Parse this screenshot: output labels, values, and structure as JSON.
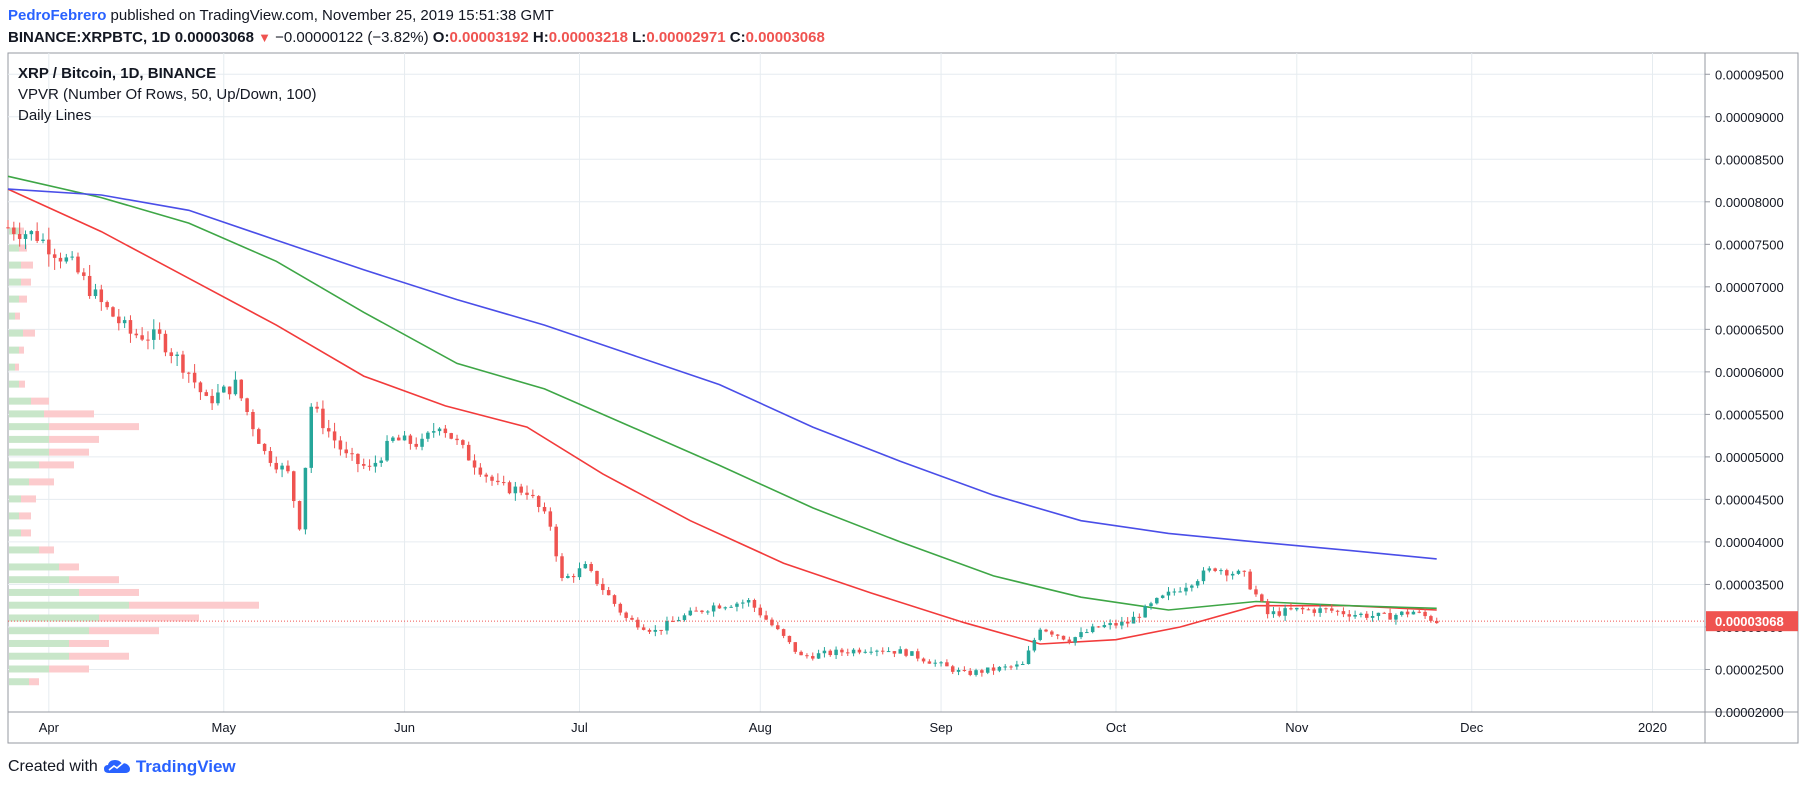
{
  "header": {
    "author": "PedroFebrero",
    "published_text": " published on TradingView.com, November 25, 2019 15:51:38 GMT",
    "symbol": "BINANCE:XRPBTC, 1D",
    "price": "0.00003068",
    "change_arrow": "▼",
    "change": "−0.00000122 (−3.82%)",
    "o_label": "O:",
    "o_value": "0.00003192",
    "h_label": "H:",
    "h_value": "0.00003218",
    "l_label": "L:",
    "l_value": "0.00002971",
    "c_label": "C:",
    "c_value": "0.00003068"
  },
  "legend": {
    "title": "XRP / Bitcoin, 1D, BINANCE",
    "vpvr": "VPVR (Number Of Rows, 50, Up/Down, 100)",
    "daily_lines": "Daily Lines"
  },
  "footer": {
    "created_with": "Created with",
    "brand": "TradingView"
  },
  "colors": {
    "up": "#26a69a",
    "down": "#ef5350",
    "ma_red": "#f23b3b",
    "ma_green": "#3ea646",
    "ma_blue": "#4a4ee8",
    "vol_up": "#c8e6c9",
    "vol_down": "#fccbcd",
    "grid": "#e6ecf0",
    "price_tag": "#ef5350",
    "brand": "#2962ff"
  },
  "chart_data": {
    "type": "candlestick",
    "y_axis_side": "right",
    "ylim": [
      2e-05,
      9.75e-05
    ],
    "price_ticks": [
      "0.00009500",
      "0.00009000",
      "0.00008500",
      "0.00008000",
      "0.00007500",
      "0.00007000",
      "0.00006500",
      "0.00006000",
      "0.00005500",
      "0.00005000",
      "0.00004500",
      "0.00004000",
      "0.00003500",
      "0.00003000",
      "0.00002500",
      "0.00002000"
    ],
    "last_price_label": "0.00003068",
    "last_price": 3.068e-05,
    "x_labels": [
      {
        "label": "Apr",
        "date": "2019-04-01"
      },
      {
        "label": "May",
        "date": "2019-05-01"
      },
      {
        "label": "Jun",
        "date": "2019-06-01"
      },
      {
        "label": "Jul",
        "date": "2019-07-01"
      },
      {
        "label": "Aug",
        "date": "2019-08-01"
      },
      {
        "label": "Sep",
        "date": "2019-09-01"
      },
      {
        "label": "Oct",
        "date": "2019-10-01"
      },
      {
        "label": "Nov",
        "date": "2019-11-01"
      },
      {
        "label": "Dec",
        "date": "2019-12-01"
      },
      {
        "label": "2020",
        "date": "2020-01-01"
      }
    ],
    "x_range": [
      "2019-03-25",
      "2020-01-10"
    ],
    "close_points": [
      [
        "2019-03-25",
        7.7
      ],
      [
        "2019-03-30",
        7.6
      ],
      [
        "2019-04-05",
        7.25
      ],
      [
        "2019-04-10",
        6.8
      ],
      [
        "2019-04-15",
        6.45
      ],
      [
        "2019-04-20",
        6.4
      ],
      [
        "2019-04-25",
        6.0
      ],
      [
        "2019-04-28",
        5.65
      ],
      [
        "2019-05-03",
        5.85
      ],
      [
        "2019-05-08",
        5.05
      ],
      [
        "2019-05-12",
        4.8
      ],
      [
        "2019-05-14",
        4.2
      ],
      [
        "2019-05-16",
        5.6
      ],
      [
        "2019-05-22",
        5.0
      ],
      [
        "2019-05-26",
        4.85
      ],
      [
        "2019-05-30",
        5.2
      ],
      [
        "2019-06-04",
        5.15
      ],
      [
        "2019-06-07",
        5.4
      ],
      [
        "2019-06-12",
        5.0
      ],
      [
        "2019-06-17",
        4.65
      ],
      [
        "2019-06-22",
        4.6
      ],
      [
        "2019-06-26",
        4.2
      ],
      [
        "2019-06-28",
        3.55
      ],
      [
        "2019-07-02",
        3.7
      ],
      [
        "2019-07-05",
        3.45
      ],
      [
        "2019-07-09",
        3.1
      ],
      [
        "2019-07-14",
        2.95
      ],
      [
        "2019-07-18",
        3.1
      ],
      [
        "2019-07-24",
        3.25
      ],
      [
        "2019-07-30",
        3.3
      ],
      [
        "2019-08-04",
        2.95
      ],
      [
        "2019-08-08",
        2.65
      ],
      [
        "2019-08-14",
        2.7
      ],
      [
        "2019-08-20",
        2.75
      ],
      [
        "2019-08-26",
        2.7
      ],
      [
        "2019-09-01",
        2.55
      ],
      [
        "2019-09-05",
        2.45
      ],
      [
        "2019-09-10",
        2.5
      ],
      [
        "2019-09-15",
        2.55
      ],
      [
        "2019-09-18",
        3.0
      ],
      [
        "2019-09-23",
        2.85
      ],
      [
        "2019-09-28",
        3.0
      ],
      [
        "2019-10-03",
        3.05
      ],
      [
        "2019-10-08",
        3.3
      ],
      [
        "2019-10-13",
        3.5
      ],
      [
        "2019-10-18",
        3.7
      ],
      [
        "2019-10-23",
        3.6
      ],
      [
        "2019-10-27",
        3.15
      ],
      [
        "2019-11-01",
        3.2
      ],
      [
        "2019-11-06",
        3.2
      ],
      [
        "2019-11-11",
        3.15
      ],
      [
        "2019-11-16",
        3.12
      ],
      [
        "2019-11-21",
        3.18
      ],
      [
        "2019-11-25",
        3.068
      ]
    ],
    "value_unit_note": "close_points values ×0.00001 BTC",
    "series": [
      {
        "type": "line",
        "color": "#f23b3b",
        "points": [
          [
            "2019-03-25",
            8.15
          ],
          [
            "2019-04-10",
            7.65
          ],
          [
            "2019-04-25",
            7.1
          ],
          [
            "2019-05-10",
            6.55
          ],
          [
            "2019-05-25",
            5.95
          ],
          [
            "2019-06-08",
            5.6
          ],
          [
            "2019-06-22",
            5.35
          ],
          [
            "2019-07-05",
            4.8
          ],
          [
            "2019-07-20",
            4.25
          ],
          [
            "2019-08-05",
            3.75
          ],
          [
            "2019-08-20",
            3.4
          ],
          [
            "2019-09-05",
            3.05
          ],
          [
            "2019-09-18",
            2.8
          ],
          [
            "2019-10-01",
            2.85
          ],
          [
            "2019-10-12",
            3.0
          ],
          [
            "2019-10-25",
            3.25
          ],
          [
            "2019-11-10",
            3.25
          ],
          [
            "2019-11-25",
            3.2
          ]
        ]
      },
      {
        "type": "line",
        "color": "#3ea646",
        "points": [
          [
            "2019-03-25",
            8.3
          ],
          [
            "2019-04-10",
            8.05
          ],
          [
            "2019-04-25",
            7.75
          ],
          [
            "2019-05-10",
            7.3
          ],
          [
            "2019-05-25",
            6.7
          ],
          [
            "2019-06-10",
            6.1
          ],
          [
            "2019-06-25",
            5.8
          ],
          [
            "2019-07-10",
            5.35
          ],
          [
            "2019-07-25",
            4.9
          ],
          [
            "2019-08-10",
            4.4
          ],
          [
            "2019-08-25",
            4.0
          ],
          [
            "2019-09-10",
            3.6
          ],
          [
            "2019-09-25",
            3.35
          ],
          [
            "2019-10-10",
            3.2
          ],
          [
            "2019-10-25",
            3.3
          ],
          [
            "2019-11-10",
            3.25
          ],
          [
            "2019-11-25",
            3.22
          ]
        ]
      },
      {
        "type": "line",
        "color": "#4a4ee8",
        "points": [
          [
            "2019-03-25",
            8.15
          ],
          [
            "2019-04-10",
            8.08
          ],
          [
            "2019-04-25",
            7.9
          ],
          [
            "2019-05-10",
            7.55
          ],
          [
            "2019-05-25",
            7.2
          ],
          [
            "2019-06-10",
            6.85
          ],
          [
            "2019-06-25",
            6.55
          ],
          [
            "2019-07-10",
            6.2
          ],
          [
            "2019-07-25",
            5.85
          ],
          [
            "2019-08-10",
            5.35
          ],
          [
            "2019-08-25",
            4.95
          ],
          [
            "2019-09-10",
            4.55
          ],
          [
            "2019-09-25",
            4.25
          ],
          [
            "2019-10-10",
            4.1
          ],
          [
            "2019-10-25",
            4.0
          ],
          [
            "2019-11-10",
            3.9
          ],
          [
            "2019-11-25",
            3.8
          ]
        ]
      }
    ],
    "vpvr_rows": [
      {
        "price": 7.65,
        "up": 10,
        "down": 5
      },
      {
        "price": 7.45,
        "up": 10,
        "down": 8
      },
      {
        "price": 7.25,
        "up": 12,
        "down": 12
      },
      {
        "price": 7.05,
        "up": 12,
        "down": 10
      },
      {
        "price": 6.85,
        "up": 10,
        "down": 8
      },
      {
        "price": 6.65,
        "up": 6,
        "down": 5
      },
      {
        "price": 6.45,
        "up": 14,
        "down": 12
      },
      {
        "price": 6.25,
        "up": 10,
        "down": 5
      },
      {
        "price": 6.05,
        "up": 6,
        "down": 4
      },
      {
        "price": 5.85,
        "up": 10,
        "down": 6
      },
      {
        "price": 5.65,
        "up": 22,
        "down": 18
      },
      {
        "price": 5.5,
        "up": 35,
        "down": 50
      },
      {
        "price": 5.35,
        "up": 40,
        "down": 90
      },
      {
        "price": 5.2,
        "up": 40,
        "down": 50
      },
      {
        "price": 5.05,
        "up": 40,
        "down": 40
      },
      {
        "price": 4.9,
        "up": 30,
        "down": 35
      },
      {
        "price": 4.7,
        "up": 20,
        "down": 25
      },
      {
        "price": 4.5,
        "up": 12,
        "down": 15
      },
      {
        "price": 4.3,
        "up": 10,
        "down": 12
      },
      {
        "price": 4.1,
        "up": 12,
        "down": 10
      },
      {
        "price": 3.9,
        "up": 30,
        "down": 15
      },
      {
        "price": 3.7,
        "up": 50,
        "down": 20
      },
      {
        "price": 3.55,
        "up": 60,
        "down": 50
      },
      {
        "price": 3.4,
        "up": 70,
        "down": 60
      },
      {
        "price": 3.25,
        "up": 120,
        "down": 130
      },
      {
        "price": 3.1,
        "up": 90,
        "down": 100
      },
      {
        "price": 2.95,
        "up": 80,
        "down": 70
      },
      {
        "price": 2.8,
        "up": 60,
        "down": 40
      },
      {
        "price": 2.65,
        "up": 60,
        "down": 60
      },
      {
        "price": 2.5,
        "up": 40,
        "down": 40
      },
      {
        "price": 2.35,
        "up": 20,
        "down": 10
      }
    ]
  }
}
